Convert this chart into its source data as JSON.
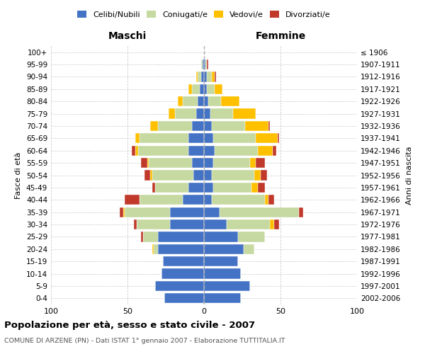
{
  "age_groups": [
    "0-4",
    "5-9",
    "10-14",
    "15-19",
    "20-24",
    "25-29",
    "30-34",
    "35-39",
    "40-44",
    "45-49",
    "50-54",
    "55-59",
    "60-64",
    "65-69",
    "70-74",
    "75-79",
    "80-84",
    "85-89",
    "90-94",
    "95-99",
    "100+"
  ],
  "birth_years": [
    "2002-2006",
    "1997-2001",
    "1992-1996",
    "1987-1991",
    "1982-1986",
    "1977-1981",
    "1972-1976",
    "1967-1971",
    "1962-1966",
    "1957-1961",
    "1952-1956",
    "1947-1951",
    "1942-1946",
    "1937-1941",
    "1932-1936",
    "1927-1931",
    "1922-1926",
    "1917-1921",
    "1912-1916",
    "1907-1911",
    "≤ 1906"
  ],
  "maschi": {
    "celibi": [
      26,
      32,
      28,
      27,
      30,
      30,
      22,
      22,
      14,
      10,
      7,
      8,
      10,
      10,
      8,
      5,
      4,
      3,
      2,
      1,
      0
    ],
    "coniugati": [
      0,
      0,
      0,
      0,
      3,
      10,
      22,
      30,
      28,
      22,
      27,
      28,
      33,
      32,
      22,
      14,
      10,
      5,
      2,
      1,
      0
    ],
    "vedovi": [
      0,
      0,
      0,
      0,
      1,
      0,
      0,
      1,
      0,
      0,
      1,
      1,
      2,
      3,
      5,
      4,
      3,
      2,
      1,
      0,
      0
    ],
    "divorziati": [
      0,
      0,
      0,
      0,
      0,
      1,
      2,
      2,
      10,
      2,
      4,
      4,
      2,
      0,
      0,
      0,
      0,
      0,
      0,
      0,
      0
    ]
  },
  "femmine": {
    "nubili": [
      24,
      30,
      24,
      22,
      26,
      22,
      15,
      10,
      5,
      6,
      5,
      6,
      7,
      6,
      5,
      4,
      3,
      2,
      2,
      1,
      0
    ],
    "coniugate": [
      0,
      0,
      0,
      0,
      7,
      18,
      28,
      52,
      35,
      25,
      28,
      24,
      28,
      28,
      22,
      15,
      8,
      5,
      3,
      1,
      0
    ],
    "vedove": [
      0,
      0,
      0,
      0,
      0,
      0,
      3,
      0,
      2,
      4,
      4,
      4,
      10,
      14,
      15,
      15,
      12,
      5,
      2,
      0,
      0
    ],
    "divorziate": [
      0,
      0,
      0,
      0,
      0,
      0,
      3,
      3,
      4,
      5,
      4,
      6,
      2,
      1,
      1,
      0,
      0,
      0,
      1,
      1,
      0
    ]
  },
  "color_celibi": "#4472c4",
  "color_coniugati": "#c5d9a0",
  "color_vedovi": "#ffc000",
  "color_divorziati": "#c0392b",
  "xlim": 100,
  "title": "Popolazione per età, sesso e stato civile - 2007",
  "subtitle": "COMUNE DI ARZENE (PN) - Dati ISTAT 1° gennaio 2007 - Elaborazione TUTTITALIA.IT",
  "ylabel_left": "Fasce di età",
  "ylabel_right": "Anni di nascita",
  "xlabel_left": "Maschi",
  "xlabel_right": "Femmine"
}
